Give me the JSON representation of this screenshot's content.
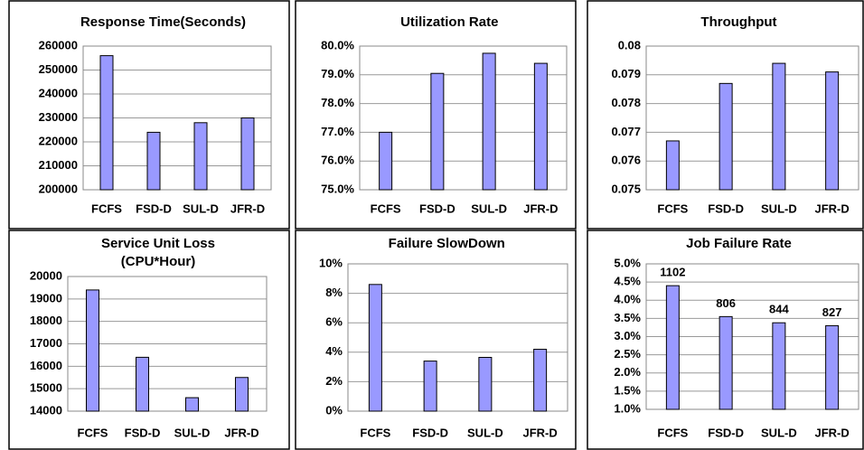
{
  "chart_data": [
    {
      "type": "bar",
      "title": "Response Time(Seconds)",
      "categories": [
        "FCFS",
        "FSD-D",
        "SUL-D",
        "JFR-D"
      ],
      "values": [
        256000,
        224000,
        228000,
        230000
      ],
      "color": "#9999ff",
      "ylim": [
        200000,
        260000
      ],
      "yticks": [
        200000,
        210000,
        220000,
        230000,
        240000,
        250000,
        260000
      ],
      "grid": true
    },
    {
      "type": "bar",
      "title": "Utilization Rate",
      "categories": [
        "FCFS",
        "FSD-D",
        "SUL-D",
        "JFR-D"
      ],
      "values": [
        77.0,
        79.05,
        79.75,
        79.4
      ],
      "color": "#9999ff",
      "ylim": [
        75,
        80
      ],
      "yticks": [
        {
          "value": 75,
          "label": "75.0%"
        },
        {
          "value": 76,
          "label": "76.0%"
        },
        {
          "value": 77,
          "label": "77.0%"
        },
        {
          "value": 78,
          "label": "78.0%"
        },
        {
          "value": 79,
          "label": "79.0%"
        },
        {
          "value": 80,
          "label": "80.0%"
        }
      ],
      "grid": true
    },
    {
      "type": "bar",
      "title": "Throughput",
      "categories": [
        "FCFS",
        "FSD-D",
        "SUL-D",
        "JFR-D"
      ],
      "values": [
        0.0767,
        0.0787,
        0.0794,
        0.0791
      ],
      "color": "#9999ff",
      "ylim": [
        0.075,
        0.08
      ],
      "yticks": [
        0.075,
        0.076,
        0.077,
        0.078,
        0.079,
        0.08
      ],
      "grid": true
    },
    {
      "type": "bar",
      "title": "Service Unit Loss",
      "subtitle": "(CPU*Hour)",
      "categories": [
        "FCFS",
        "FSD-D",
        "SUL-D",
        "JFR-D"
      ],
      "values": [
        19400,
        16400,
        14600,
        15500
      ],
      "color": "#9999ff",
      "ylim": [
        14000,
        20000
      ],
      "yticks": [
        14000,
        15000,
        16000,
        17000,
        18000,
        19000,
        20000
      ],
      "grid": true
    },
    {
      "type": "bar",
      "title": "Failure SlowDown",
      "categories": [
        "FCFS",
        "FSD-D",
        "SUL-D",
        "JFR-D"
      ],
      "values": [
        8.6,
        3.4,
        3.65,
        4.2
      ],
      "color": "#9999ff",
      "ylim": [
        0,
        10
      ],
      "yticks": [
        {
          "value": 0,
          "label": "0%"
        },
        {
          "value": 2,
          "label": "2%"
        },
        {
          "value": 4,
          "label": "4%"
        },
        {
          "value": 6,
          "label": "6%"
        },
        {
          "value": 8,
          "label": "8%"
        },
        {
          "value": 10,
          "label": "10%"
        }
      ],
      "grid": true
    },
    {
      "type": "bar",
      "title": "Job Failure Rate",
      "categories": [
        "FCFS",
        "FSD-D",
        "SUL-D",
        "JFR-D"
      ],
      "values": [
        4.4,
        3.55,
        3.38,
        3.3
      ],
      "counts": [
        1102,
        806,
        844,
        827
      ],
      "color": "#9999ff",
      "ylim": [
        1,
        5
      ],
      "yticks": [
        {
          "value": 1,
          "label": "1.0%"
        },
        {
          "value": 1.5,
          "label": "1.5%"
        },
        {
          "value": 2,
          "label": "2.0%"
        },
        {
          "value": 2.5,
          "label": "2.5%"
        },
        {
          "value": 3,
          "label": "3.0%"
        },
        {
          "value": 3.5,
          "label": "3.5%"
        },
        {
          "value": 4,
          "label": "4.0%"
        },
        {
          "value": 4.5,
          "label": "4.5%"
        },
        {
          "value": 5,
          "label": "5.0%"
        }
      ],
      "grid": true
    }
  ]
}
